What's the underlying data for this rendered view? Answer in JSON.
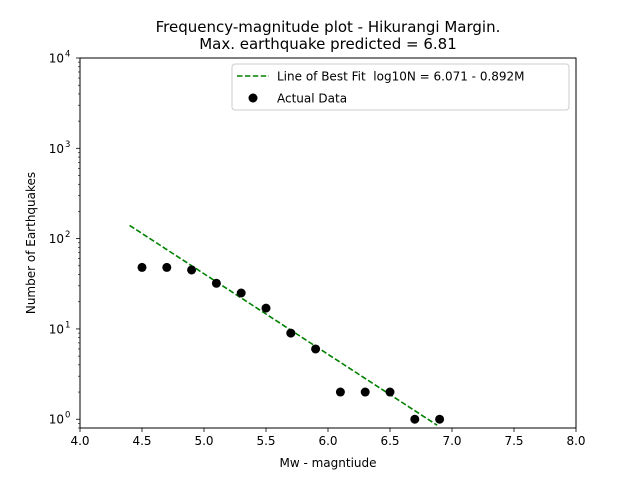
{
  "chart_data": {
    "type": "scatter",
    "title_line1": "Frequency-magnitude plot - Hikurangi Margin.",
    "title_line2": "Max. earthquake predicted = 6.81",
    "xlabel": "Mw - magntiude",
    "ylabel": "Number of Earthquakes",
    "xlim": [
      4.0,
      8.0
    ],
    "ylim": [
      0.8,
      10000
    ],
    "yscale": "log",
    "x_ticks": [
      4.0,
      4.5,
      5.0,
      5.5,
      6.0,
      6.5,
      7.0,
      7.5,
      8.0
    ],
    "x_tick_labels": [
      "4.0",
      "4.5",
      "5.0",
      "5.5",
      "6.0",
      "6.5",
      "7.0",
      "7.5",
      "8.0"
    ],
    "y_ticks": [
      {
        "value": 1,
        "base": "10",
        "exp": "0"
      },
      {
        "value": 10,
        "base": "10",
        "exp": "1"
      },
      {
        "value": 100,
        "base": "10",
        "exp": "2"
      },
      {
        "value": 1000,
        "base": "10",
        "exp": "3"
      },
      {
        "value": 10000,
        "base": "10",
        "exp": "4"
      }
    ],
    "legend_position": "top-right",
    "grid": false,
    "series": [
      {
        "name": "Line of Best Fit  log10N = 6.071 - 0.892M",
        "kind": "line",
        "style": "dashed",
        "color": "#008000",
        "intercept": 6.071,
        "slope": -0.892,
        "x_range": [
          4.4,
          6.88
        ]
      },
      {
        "name": "Actual Data",
        "kind": "scatter",
        "color": "#000000",
        "x": [
          4.5,
          4.7,
          4.9,
          5.1,
          5.3,
          5.5,
          5.7,
          5.9,
          6.1,
          6.3,
          6.5,
          6.7,
          6.9
        ],
        "y": [
          48,
          48,
          45,
          32,
          25,
          17,
          9,
          6,
          2,
          2,
          2,
          1,
          1
        ]
      }
    ]
  }
}
